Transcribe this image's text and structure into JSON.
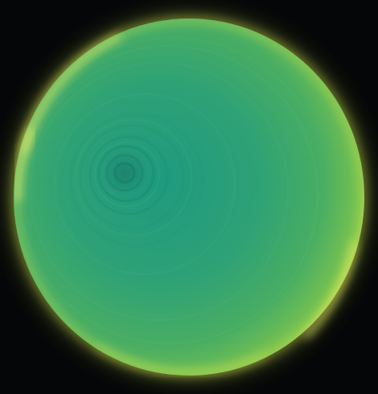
{
  "image": {
    "subject": "glowing-green-disc",
    "colors": {
      "background": "#050608",
      "center": "#1f9a7f",
      "mid": "#3ea86a",
      "outer": "#78c24f",
      "rim": "#cfe24a",
      "rim_bright": "#f2f46a"
    }
  }
}
